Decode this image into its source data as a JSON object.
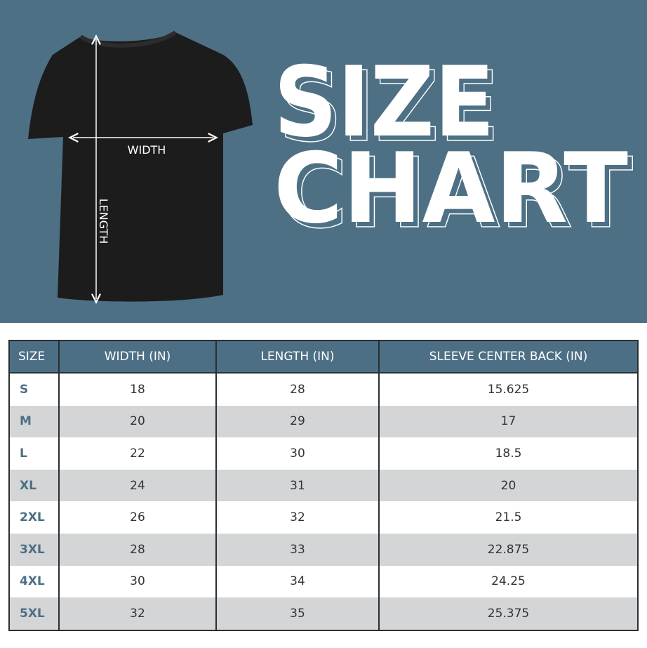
{
  "banner": {
    "title_line1": "SIZE",
    "title_line2": "CHART",
    "width_label": "WIDTH",
    "length_label": "LENGTH",
    "background_color": "#4e7085"
  },
  "chart_data": {
    "type": "table",
    "columns": [
      "SIZE",
      "WIDTH (IN)",
      "LENGTH (IN)",
      "SLEEVE CENTER BACK (IN)"
    ],
    "rows": [
      [
        "S",
        "18",
        "28",
        "15.625"
      ],
      [
        "M",
        "20",
        "29",
        "17"
      ],
      [
        "L",
        "22",
        "30",
        "18.5"
      ],
      [
        "XL",
        "24",
        "31",
        "20"
      ],
      [
        "2XL",
        "26",
        "32",
        "21.5"
      ],
      [
        "3XL",
        "28",
        "33",
        "22.875"
      ],
      [
        "4XL",
        "30",
        "34",
        "24.25"
      ],
      [
        "5XL",
        "32",
        "35",
        "25.375"
      ]
    ],
    "header_color": "#4d6f85",
    "stripe_color": "#d4d5d6"
  }
}
